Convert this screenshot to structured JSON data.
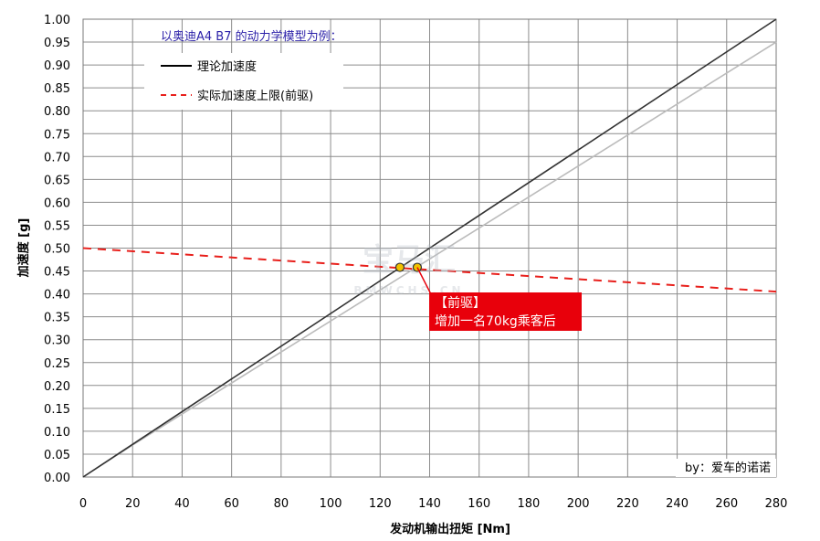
{
  "chart_data": {
    "type": "line",
    "subtitle": "以奥迪A4 B7 的动力学模型为例：",
    "xlabel": "发动机输出扭矩 [Nm]",
    "ylabel": "加速度 [g]",
    "xlim": [
      0,
      280
    ],
    "ylim": [
      0,
      1.0
    ],
    "x_ticks": [
      0,
      20,
      40,
      60,
      80,
      100,
      120,
      140,
      160,
      180,
      200,
      220,
      240,
      260,
      280
    ],
    "y_ticks": [
      0.0,
      0.05,
      0.1,
      0.15,
      0.2,
      0.25,
      0.3,
      0.35,
      0.4,
      0.45,
      0.5,
      0.55,
      0.6,
      0.65,
      0.7,
      0.75,
      0.8,
      0.85,
      0.9,
      0.95,
      1.0
    ],
    "x_tick_labels": [
      "0",
      "20",
      "40",
      "60",
      "80",
      "100",
      "120",
      "140",
      "160",
      "180",
      "200",
      "220",
      "240",
      "260",
      "280"
    ],
    "y_tick_labels": [
      "0.00",
      "0.05",
      "0.10",
      "0.15",
      "0.20",
      "0.25",
      "0.30",
      "0.35",
      "0.40",
      "0.45",
      "0.50",
      "0.55",
      "0.60",
      "0.65",
      "0.70",
      "0.75",
      "0.80",
      "0.85",
      "0.90",
      "0.95",
      "1.00"
    ],
    "grid": true,
    "legend_position": "top-left",
    "series": [
      {
        "name": "理论加速度",
        "color": "#333333",
        "style": "solid",
        "x": [
          0,
          280
        ],
        "y": [
          0.0,
          1.0
        ],
        "in_legend": true
      },
      {
        "name": "实际加速度上限(前驱)",
        "color": "#e8201c",
        "style": "dashed",
        "x": [
          0,
          280
        ],
        "y": [
          0.5,
          0.405
        ],
        "in_legend": true
      },
      {
        "name": "",
        "color": "#bbbbbb",
        "style": "solid",
        "x": [
          0,
          20,
          280
        ],
        "y": [
          0.0,
          0.07,
          0.95
        ],
        "in_legend": false
      }
    ],
    "markers": [
      {
        "x": 128,
        "y": 0.458,
        "color": "#f2c200"
      },
      {
        "x": 135,
        "y": 0.458,
        "color": "#f2c200"
      }
    ],
    "callout": {
      "lines": [
        "【前驱】",
        "增加一名70kg乘客后"
      ],
      "anchor_x": 135,
      "anchor_y": 0.458,
      "background": "#e8000b"
    },
    "credit": "by：爱车的诺诺",
    "watermark": "宝马汇 BMWCHS.CN"
  }
}
